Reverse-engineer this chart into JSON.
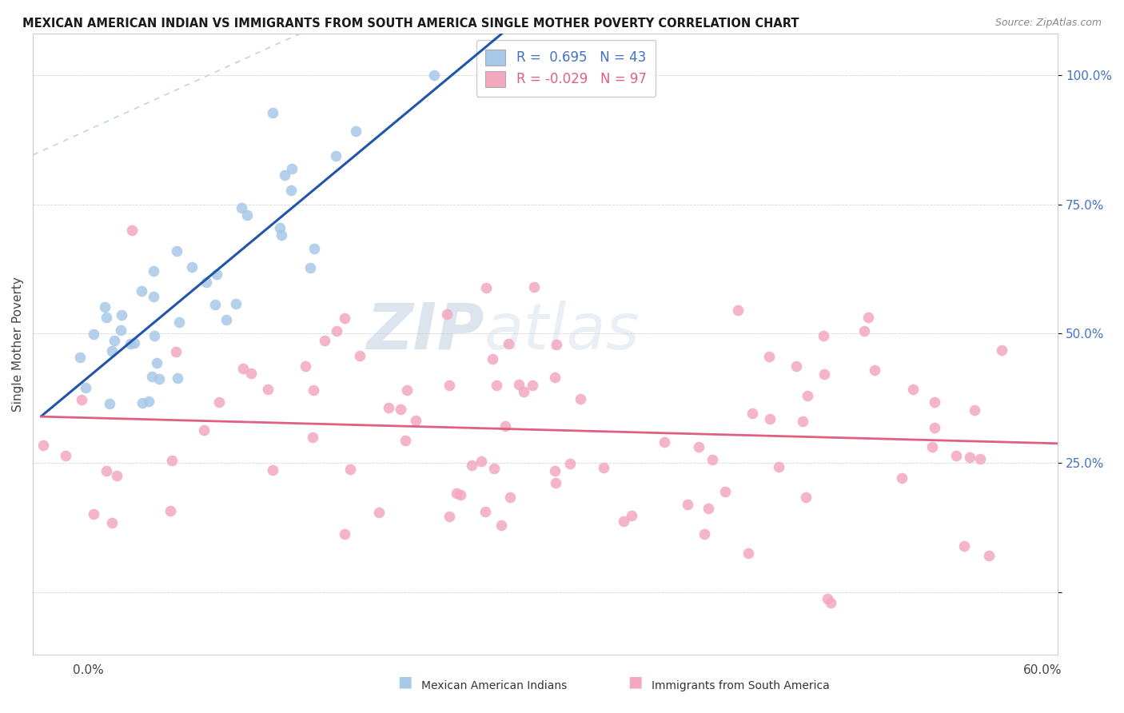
{
  "title": "MEXICAN AMERICAN INDIAN VS IMMIGRANTS FROM SOUTH AMERICA SINGLE MOTHER POVERTY CORRELATION CHART",
  "source": "Source: ZipAtlas.com",
  "ylabel": "Single Mother Poverty",
  "r_blue": 0.695,
  "n_blue": 43,
  "r_pink": -0.029,
  "n_pink": 97,
  "xmin": 0.0,
  "xmax": 0.6,
  "ymin": -0.12,
  "ymax": 1.08,
  "blue_color": "#a8c8e8",
  "pink_color": "#f4a8c0",
  "blue_line_color": "#2255aa",
  "pink_line_color": "#e06080",
  "diag_color": "#b0c8e0",
  "watermark_color": "#d0dce8",
  "ytick_color": "#4472c4",
  "legend_blue_label": "Mexican American Indians",
  "legend_pink_label": "Immigrants from South America",
  "blue_seed": 42,
  "pink_seed": 7
}
